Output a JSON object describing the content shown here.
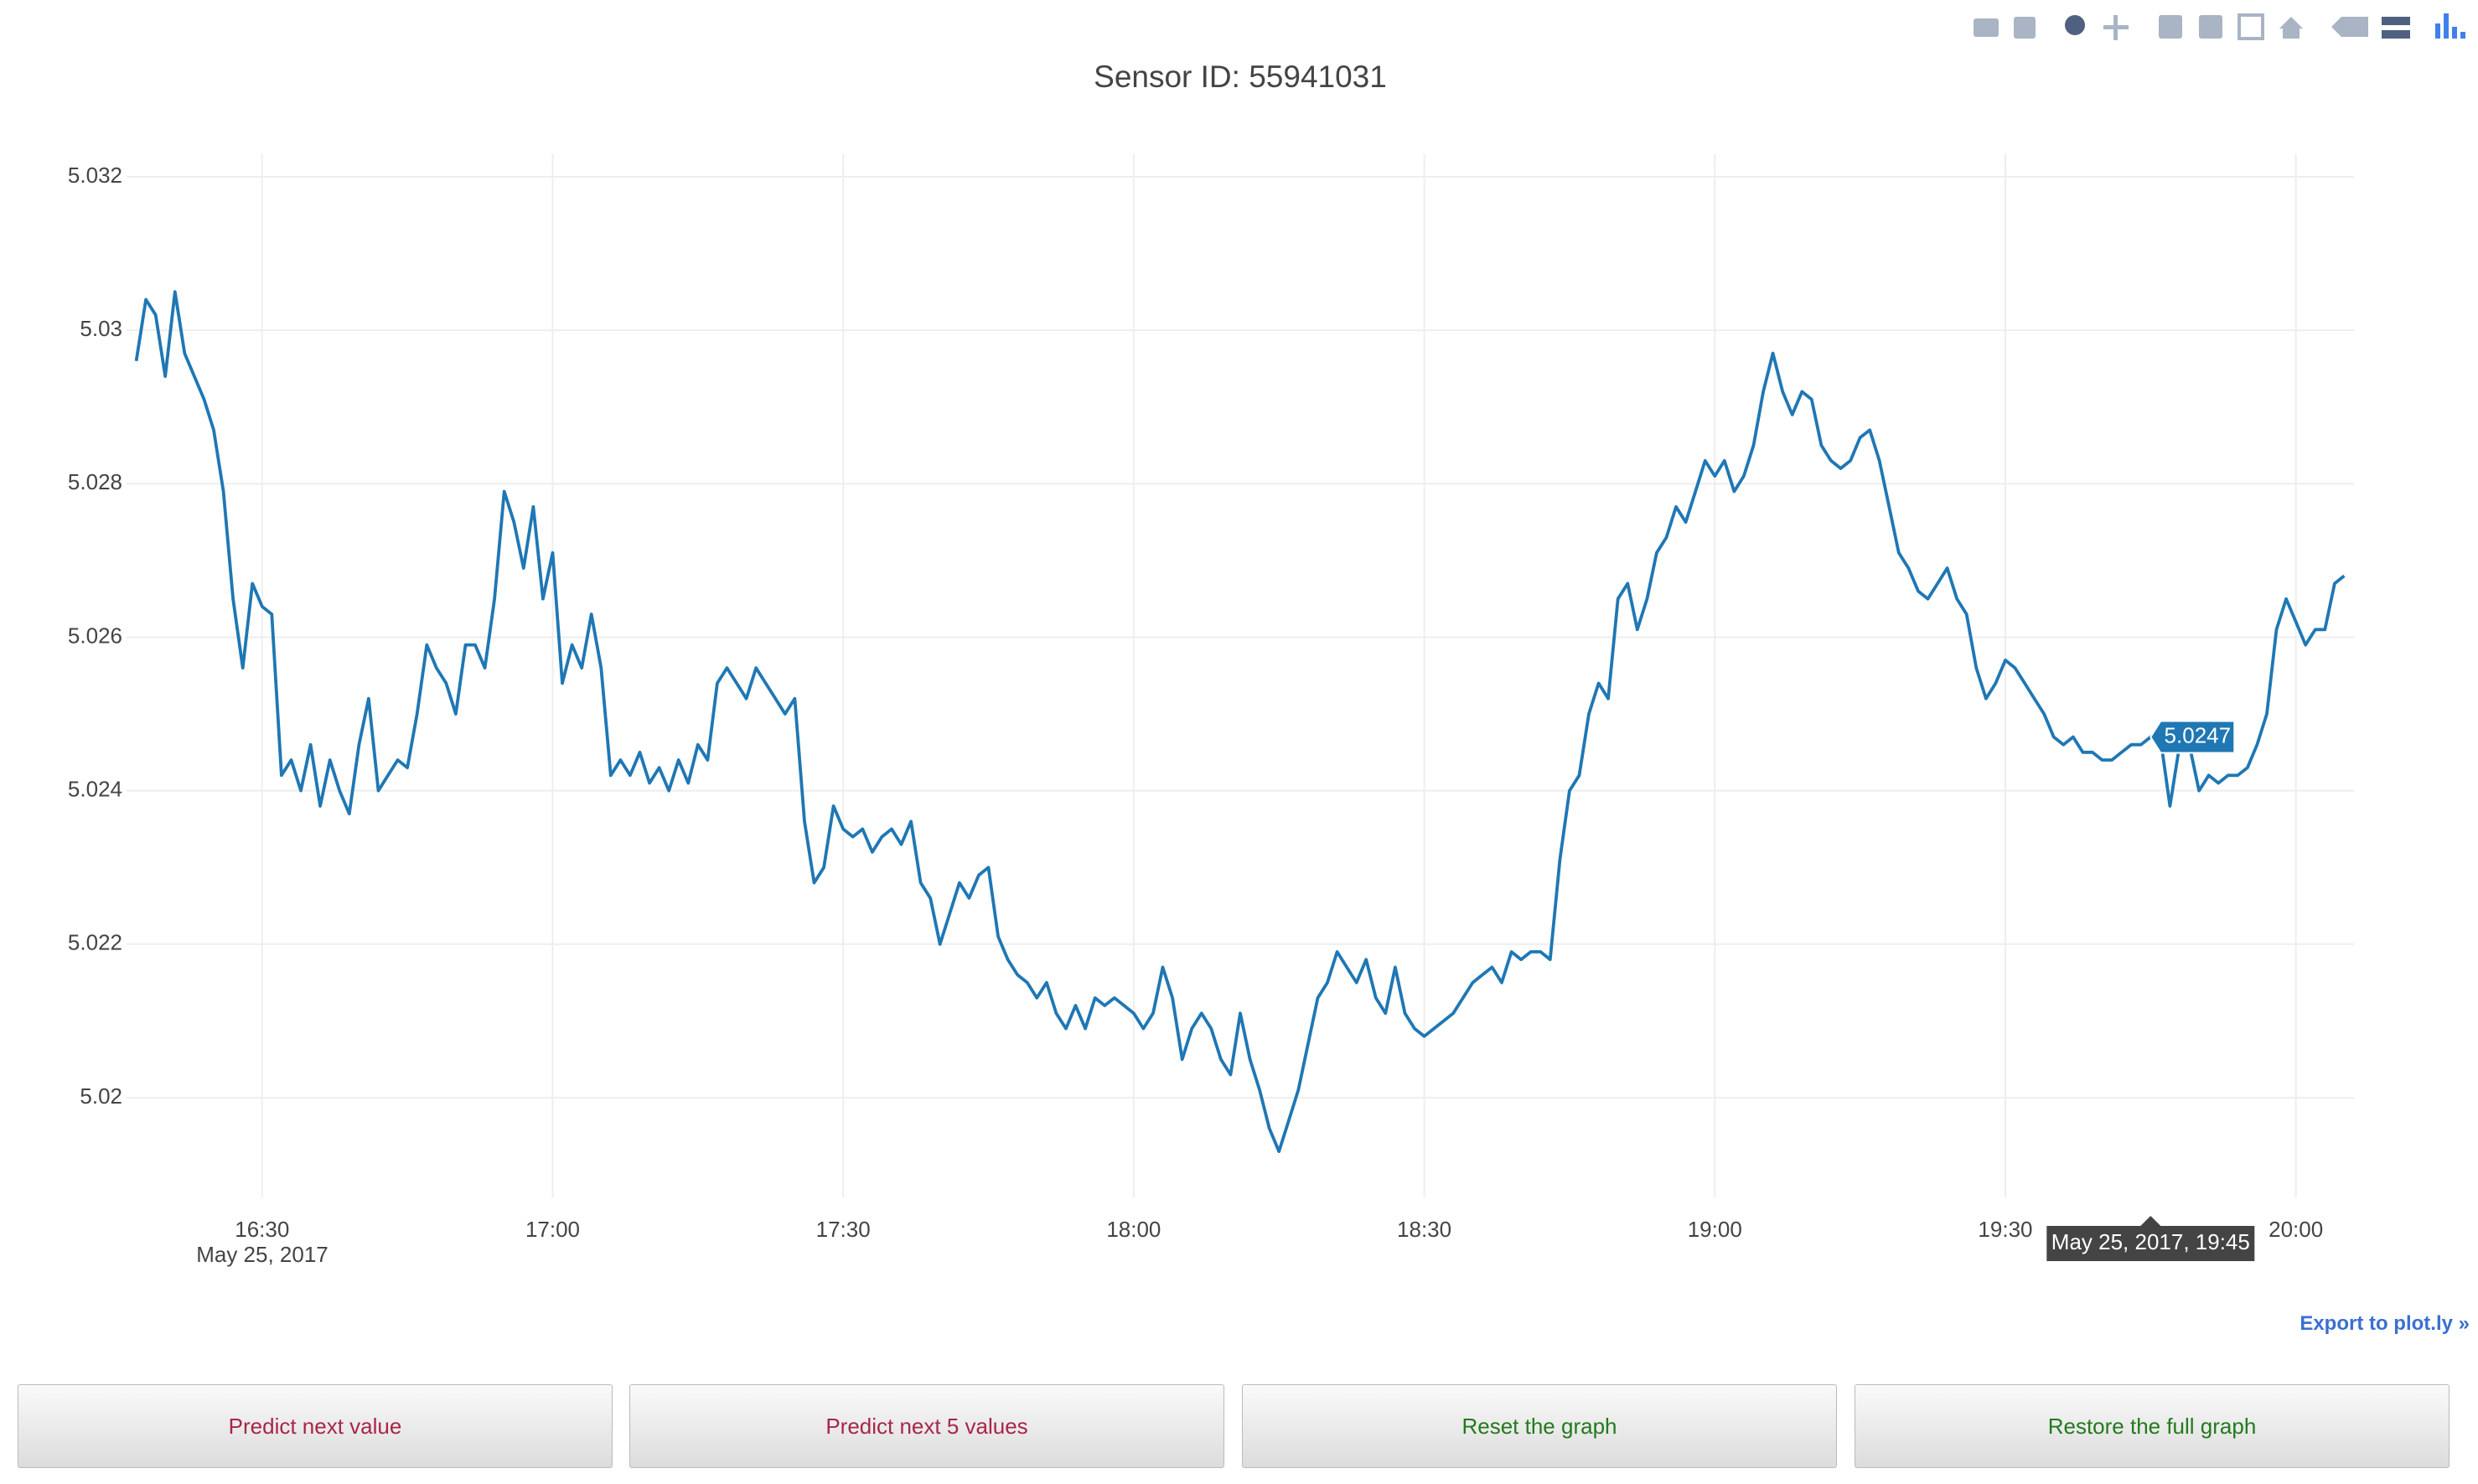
{
  "chart_data": {
    "type": "line",
    "title": "Sensor ID: 55941031",
    "date_label": "May 25, 2017",
    "color": "#1f77b4",
    "grid": true,
    "x": [
      "16:17",
      "16:18",
      "16:19",
      "16:20",
      "16:21",
      "16:22",
      "16:23",
      "16:24",
      "16:25",
      "16:26",
      "16:27",
      "16:28",
      "16:29",
      "16:30",
      "16:31",
      "16:32",
      "16:33",
      "16:34",
      "16:35",
      "16:36",
      "16:37",
      "16:38",
      "16:39",
      "16:40",
      "16:41",
      "16:42",
      "16:43",
      "16:44",
      "16:45",
      "16:46",
      "16:47",
      "16:48",
      "16:49",
      "16:50",
      "16:51",
      "16:52",
      "16:53",
      "16:54",
      "16:55",
      "16:56",
      "16:57",
      "16:58",
      "16:59",
      "17:00",
      "17:01",
      "17:02",
      "17:03",
      "17:04",
      "17:05",
      "17:06",
      "17:07",
      "17:08",
      "17:09",
      "17:10",
      "17:11",
      "17:12",
      "17:13",
      "17:14",
      "17:15",
      "17:16",
      "17:17",
      "17:18",
      "17:19",
      "17:20",
      "17:21",
      "17:22",
      "17:23",
      "17:24",
      "17:25",
      "17:26",
      "17:27",
      "17:28",
      "17:29",
      "17:30",
      "17:31",
      "17:32",
      "17:33",
      "17:34",
      "17:35",
      "17:36",
      "17:37",
      "17:38",
      "17:39",
      "17:40",
      "17:41",
      "17:42",
      "17:43",
      "17:44",
      "17:45",
      "17:46",
      "17:47",
      "17:48",
      "17:49",
      "17:50",
      "17:51",
      "17:52",
      "17:53",
      "17:54",
      "17:55",
      "17:56",
      "17:57",
      "17:58",
      "17:59",
      "18:00",
      "18:01",
      "18:02",
      "18:03",
      "18:04",
      "18:05",
      "18:06",
      "18:07",
      "18:08",
      "18:09",
      "18:10",
      "18:11",
      "18:12",
      "18:13",
      "18:14",
      "18:15",
      "18:16",
      "18:17",
      "18:18",
      "18:19",
      "18:20",
      "18:21",
      "18:22",
      "18:23",
      "18:24",
      "18:25",
      "18:26",
      "18:27",
      "18:28",
      "18:29",
      "18:30",
      "18:31",
      "18:32",
      "18:33",
      "18:34",
      "18:35",
      "18:36",
      "18:37",
      "18:38",
      "18:39",
      "18:40",
      "18:41",
      "18:42",
      "18:43",
      "18:44",
      "18:45",
      "18:46",
      "18:47",
      "18:48",
      "18:49",
      "18:50",
      "18:51",
      "18:52",
      "18:53",
      "18:54",
      "18:55",
      "18:56",
      "18:57",
      "18:58",
      "18:59",
      "19:00",
      "19:01",
      "19:02",
      "19:03",
      "19:04",
      "19:05",
      "19:06",
      "19:07",
      "19:08",
      "19:09",
      "19:10",
      "19:11",
      "19:12",
      "19:13",
      "19:14",
      "19:15",
      "19:16",
      "19:17",
      "19:18",
      "19:19",
      "19:20",
      "19:21",
      "19:22",
      "19:23",
      "19:24",
      "19:25",
      "19:26",
      "19:27",
      "19:28",
      "19:29",
      "19:30",
      "19:31",
      "19:32",
      "19:33",
      "19:34",
      "19:35",
      "19:36",
      "19:37",
      "19:38",
      "19:39",
      "19:40",
      "19:41",
      "19:42",
      "19:43",
      "19:44",
      "19:45",
      "19:46",
      "19:47",
      "19:48",
      "19:49",
      "19:50",
      "19:51",
      "19:52",
      "19:53",
      "19:54",
      "19:55",
      "19:56",
      "19:57",
      "19:58",
      "19:59",
      "20:00",
      "20:01",
      "20:02",
      "20:03",
      "20:04",
      "20:05"
    ],
    "values": [
      5.0296,
      5.0304,
      5.0302,
      5.0294,
      5.0305,
      5.0297,
      5.0294,
      5.0291,
      5.0287,
      5.0279,
      5.0265,
      5.0256,
      5.0267,
      5.0264,
      5.0263,
      5.0242,
      5.0244,
      5.024,
      5.0246,
      5.0238,
      5.0244,
      5.024,
      5.0237,
      5.0246,
      5.0252,
      5.024,
      5.0242,
      5.0244,
      5.0243,
      5.025,
      5.0259,
      5.0256,
      5.0254,
      5.025,
      5.0259,
      5.0259,
      5.0256,
      5.0265,
      5.0279,
      5.0275,
      5.0269,
      5.0277,
      5.0265,
      5.0271,
      5.0254,
      5.0259,
      5.0256,
      5.0263,
      5.0256,
      5.0242,
      5.0244,
      5.0242,
      5.0245,
      5.0241,
      5.0243,
      5.024,
      5.0244,
      5.0241,
      5.0246,
      5.0244,
      5.0254,
      5.0256,
      5.0254,
      5.0252,
      5.0256,
      5.0254,
      5.0252,
      5.025,
      5.0252,
      5.0236,
      5.0228,
      5.023,
      5.0238,
      5.0235,
      5.0234,
      5.0235,
      5.0232,
      5.0234,
      5.0235,
      5.0233,
      5.0236,
      5.0228,
      5.0226,
      5.022,
      5.0224,
      5.0228,
      5.0226,
      5.0229,
      5.023,
      5.0221,
      5.0218,
      5.0216,
      5.0215,
      5.0213,
      5.0215,
      5.0211,
      5.0209,
      5.0212,
      5.0209,
      5.0213,
      5.0212,
      5.0213,
      5.0212,
      5.0211,
      5.0209,
      5.0211,
      5.0217,
      5.0213,
      5.0205,
      5.0209,
      5.0211,
      5.0209,
      5.0205,
      5.0203,
      5.0211,
      5.0205,
      5.0201,
      5.0196,
      5.0193,
      5.0197,
      5.0201,
      5.0207,
      5.0213,
      5.0215,
      5.0219,
      5.0217,
      5.0215,
      5.0218,
      5.0213,
      5.0211,
      5.0217,
      5.0211,
      5.0209,
      5.0208,
      5.0209,
      5.021,
      5.0211,
      5.0213,
      5.0215,
      5.0216,
      5.0217,
      5.0215,
      5.0219,
      5.0218,
      5.0219,
      5.0219,
      5.0218,
      5.0231,
      5.024,
      5.0242,
      5.025,
      5.0254,
      5.0252,
      5.0265,
      5.0267,
      5.0261,
      5.0265,
      5.0271,
      5.0273,
      5.0277,
      5.0275,
      5.0279,
      5.0283,
      5.0281,
      5.0283,
      5.0279,
      5.0281,
      5.0285,
      5.0292,
      5.0297,
      5.0292,
      5.0289,
      5.0292,
      5.0291,
      5.0285,
      5.0283,
      5.0282,
      5.0283,
      5.0286,
      5.0287,
      5.0283,
      5.0277,
      5.0271,
      5.0269,
      5.0266,
      5.0265,
      5.0267,
      5.0269,
      5.0265,
      5.0263,
      5.0256,
      5.0252,
      5.0254,
      5.0257,
      5.0256,
      5.0254,
      5.0252,
      5.025,
      5.0247,
      5.0246,
      5.0247,
      5.0245,
      5.0245,
      5.0244,
      5.0244,
      5.0245,
      5.0246,
      5.0246,
      5.0247,
      5.0247,
      5.0238,
      5.0246,
      5.0246,
      5.024,
      5.0242,
      5.0241,
      5.0242,
      5.0242,
      5.0243,
      5.0246,
      5.025,
      5.0261,
      5.0265,
      5.0262,
      5.0259,
      5.0261,
      5.0261,
      5.0267,
      5.0268
    ],
    "xlim": [
      "16:16",
      "20:06"
    ],
    "xticks": [
      "16:30",
      "17:00",
      "17:30",
      "18:00",
      "18:30",
      "19:00",
      "19:30",
      "20:00"
    ],
    "ylim": [
      5.0187,
      5.0323
    ],
    "yticks": [
      5.02,
      5.022,
      5.024,
      5.026,
      5.028,
      5.03,
      5.032
    ],
    "hover": {
      "value": 5.0247,
      "x": "19:45",
      "x_label": "May 25, 2017, 19:45"
    }
  },
  "export_link": "Export to plot.ly »",
  "buttons": [
    "Predict next value",
    "Predict next 5 values",
    "Reset the graph",
    "Restore the full graph"
  ]
}
